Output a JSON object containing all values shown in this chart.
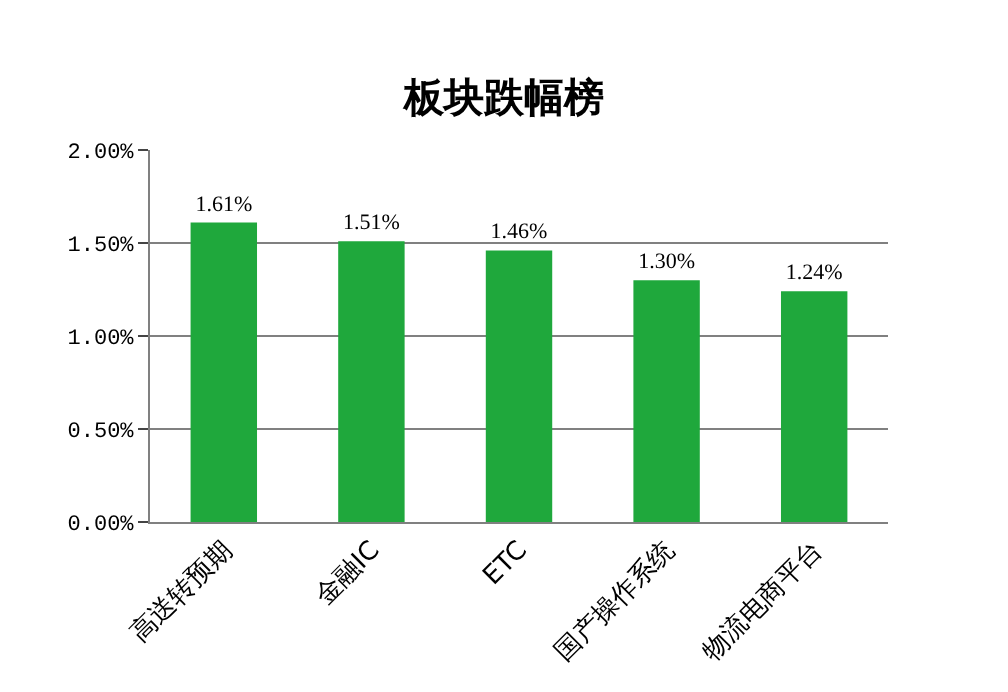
{
  "chart_data": {
    "type": "bar",
    "title": "板块跌幅榜",
    "categories": [
      "高送转预期",
      "金融IC",
      "ETC",
      "国产操作系统",
      "物流电商平台"
    ],
    "values": [
      1.61,
      1.51,
      1.46,
      1.3,
      1.24
    ],
    "value_labels": [
      "1.61%",
      "1.51%",
      "1.46%",
      "1.30%",
      "1.24%"
    ],
    "color": "#1fa83c",
    "ylim": [
      0,
      2
    ],
    "yticks": [
      {
        "value": 0,
        "label": "0.00%"
      },
      {
        "value": 0.5,
        "label": "0.50%"
      },
      {
        "value": 1,
        "label": "1.00%"
      },
      {
        "value": 1.5,
        "label": "1.50%"
      },
      {
        "value": 2,
        "label": "2.00%"
      }
    ],
    "grid": "y"
  }
}
